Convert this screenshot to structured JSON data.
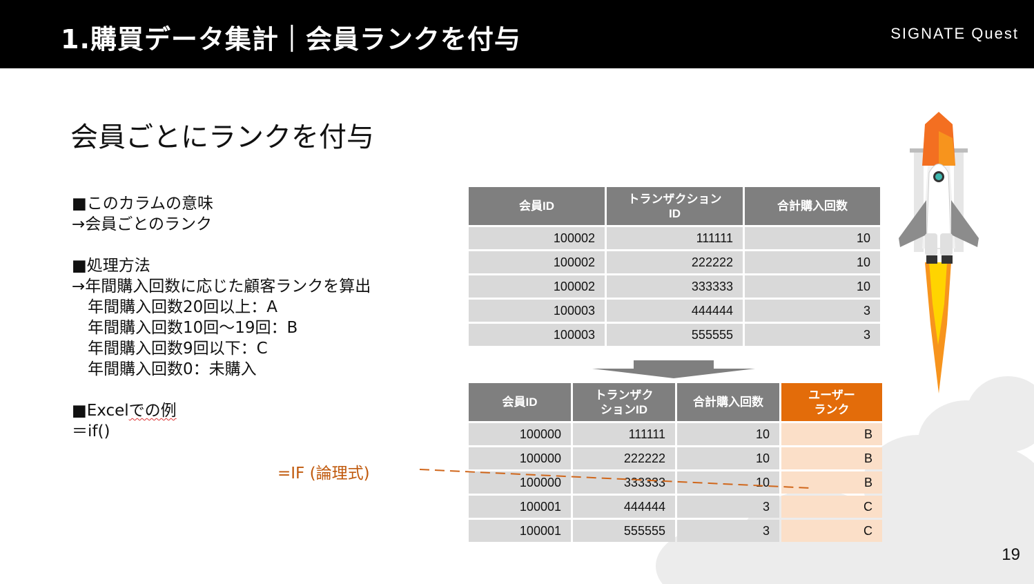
{
  "header": {
    "title": "1.購買データ集計｜会員ランクを付与",
    "brand": "SIGNATE Quest"
  },
  "subtitle": "会員ごとにランクを付与",
  "body_lines": {
    "l1": "■このカラムの意味",
    "l2": "→会員ごとのランク",
    "l3": "■処理方法",
    "l4": "→年間購入回数に応じた顧客ランクを算出",
    "l5": "　年間購入回数20回以上：A",
    "l6": "　年間購入回数10回～19回：B",
    "l7": "　年間購入回数9回以下：C",
    "l8": "　年間購入回数0：未購入",
    "l9_prefix": "■Excel",
    "l9_wavy": "での例",
    "l10": "＝if()"
  },
  "if_label": "=IF (論理式)",
  "table1": {
    "headers": [
      "会員ID",
      "トランザクション\nID",
      "合計購入回数"
    ],
    "rows": [
      [
        "100002",
        "111111",
        "10"
      ],
      [
        "100002",
        "222222",
        "10"
      ],
      [
        "100002",
        "333333",
        "10"
      ],
      [
        "100003",
        "444444",
        "3"
      ],
      [
        "100003",
        "555555",
        "3"
      ]
    ]
  },
  "table2": {
    "headers": [
      "会員ID",
      "トランザク\nションID",
      "合計購入回数",
      "ユーザー\nランク"
    ],
    "rows": [
      [
        "100000",
        "111111",
        "10",
        "B"
      ],
      [
        "100000",
        "222222",
        "10",
        "B"
      ],
      [
        "100000",
        "333333",
        "10",
        "B"
      ],
      [
        "100001",
        "444444",
        "3",
        "C"
      ],
      [
        "100001",
        "555555",
        "3",
        "C"
      ]
    ]
  },
  "colors": {
    "header_bg": "#000000",
    "table_header": "#7f7f7f",
    "table_cell": "#d9d9d9",
    "accent": "#e36c0a",
    "rank_cell": "#fbdfc8",
    "if_text": "#c0590c"
  },
  "page_number": "19"
}
